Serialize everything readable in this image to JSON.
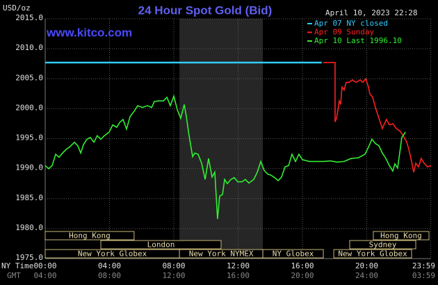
{
  "chart_data": {
    "type": "line",
    "title": "24 Hour Spot Gold (Bid)",
    "site": "www.kitco.com",
    "timestamp": "April 10, 2023 22:28",
    "y_label": "USD/oz",
    "x_row_labels": [
      "NY Time",
      "GMT"
    ],
    "xlim": [
      0,
      24
    ],
    "ylim": [
      1975,
      2015
    ],
    "xticks": [
      {
        "value": 0,
        "label": "00:00"
      },
      {
        "value": 4,
        "label": "04:00"
      },
      {
        "value": 8,
        "label": "08:00"
      },
      {
        "value": 12,
        "label": "12:00"
      },
      {
        "value": 16,
        "label": "16:00"
      },
      {
        "value": 20,
        "label": "20:00"
      },
      {
        "value": 23.98,
        "label": "23:59"
      }
    ],
    "gmt_labels": [
      "04:00",
      "08:00",
      "12:00",
      "16:00",
      "20:00",
      "24:00",
      "03:59"
    ],
    "yticks": [
      {
        "value": 1975,
        "label": "1975.0"
      },
      {
        "value": 1980,
        "label": "1980.0"
      },
      {
        "value": 1985,
        "label": "1985.0"
      },
      {
        "value": 1990,
        "label": "1990.0"
      },
      {
        "value": 1995,
        "label": "1995.0"
      },
      {
        "value": 2000,
        "label": "2000.0"
      },
      {
        "value": 2005,
        "label": "2005.0"
      },
      {
        "value": 2010,
        "label": "2010.0"
      },
      {
        "value": 2015,
        "label": "2015.0"
      }
    ],
    "grid": true,
    "shaded_range": [
      8.35,
      13.54
    ],
    "sessions": [
      [
        {
          "label": "Hong Kong",
          "start": 0,
          "end": 5.53
        },
        {
          "label": "Hong Kong",
          "start": 20.41,
          "end": 23.87
        }
      ],
      [
        {
          "label": "London",
          "start": 3.46,
          "end": 10.94
        },
        {
          "label": "Sydney",
          "start": 18.94,
          "end": 23.05
        }
      ],
      [
        {
          "label": "New York Globex",
          "start": 0,
          "end": 8.35
        },
        {
          "label": "New York NYMEX",
          "start": 8.35,
          "end": 13.54
        },
        {
          "label": "NY Globex",
          "start": 13.54,
          "end": 17.3
        },
        {
          "label": "New York Globex",
          "start": 17.95,
          "end": 22.79
        }
      ]
    ],
    "series": [
      {
        "name": "Apr 07 NY closed",
        "color": "#33ccff",
        "x": [
          0,
          17.2
        ],
        "values": [
          2007.7,
          2007.7
        ]
      },
      {
        "name": "Apr 09 Sunday",
        "color": "#ff2020",
        "x": [
          17.3,
          18.03,
          18.03,
          18.12,
          18.2,
          18.29,
          18.38,
          18.46,
          18.59,
          18.72,
          18.9,
          19.11,
          19.33,
          19.59,
          19.76,
          19.94,
          20.11,
          20.19,
          20.37,
          20.54,
          20.76,
          20.97,
          21.1,
          21.23,
          21.41,
          21.62,
          21.84,
          22.05,
          22.27,
          22.49,
          22.62,
          22.79,
          22.92,
          23.05,
          23.22,
          23.39,
          23.57,
          23.78,
          24.0
        ],
        "values": [
          2007.7,
          2007.7,
          1997.8,
          1998.4,
          1999.6,
          2001.3,
          2000.7,
          2003.6,
          2003.1,
          2004.4,
          2004.4,
          2004.8,
          2004.4,
          2004.8,
          2004.4,
          2005.0,
          2003.6,
          2002.5,
          2001.9,
          2000.2,
          1998.4,
          1996.7,
          1997.5,
          1998.2,
          1997.3,
          1997.5,
          1996.7,
          1996.3,
          1995.5,
          1994.4,
          1993.2,
          1991.2,
          1989.4,
          1990.9,
          1990.3,
          1991.7,
          1990.9,
          1990.3,
          1990.5
        ]
      },
      {
        "name": "Apr 10 Last 1996.10",
        "color": "#33ee33",
        "x": [
          0,
          0.22,
          0.43,
          0.65,
          0.86,
          1.08,
          1.3,
          1.51,
          1.82,
          2.03,
          2.21,
          2.38,
          2.59,
          2.81,
          3.03,
          3.24,
          3.46,
          3.68,
          3.98,
          4.2,
          4.45,
          4.63,
          4.84,
          5.06,
          5.28,
          5.54,
          5.75,
          6.05,
          6.36,
          6.62,
          6.79,
          7.05,
          7.35,
          7.57,
          7.78,
          8.0,
          8.22,
          8.43,
          8.65,
          8.78,
          8.95,
          9.17,
          9.3,
          9.51,
          9.73,
          9.95,
          10.16,
          10.38,
          10.55,
          10.72,
          10.85,
          11.03,
          11.16,
          11.33,
          11.55,
          11.76,
          11.98,
          12.24,
          12.45,
          12.67,
          12.97,
          13.19,
          13.41,
          13.62,
          13.84,
          14.05,
          14.27,
          14.49,
          14.7,
          14.92,
          15.14,
          15.35,
          15.57,
          15.78,
          16.0,
          16.43,
          16.86,
          17.3,
          17.73,
          18.16,
          18.59,
          19.03,
          19.46,
          19.89,
          20.11,
          20.32,
          20.54,
          20.76,
          20.97,
          21.19,
          21.41,
          21.62,
          21.75,
          21.92,
          22.05,
          22.18,
          22.41
        ],
        "values": [
          1990.5,
          1990.0,
          1990.5,
          1992.4,
          1991.9,
          1992.6,
          1993.2,
          1993.6,
          1994.4,
          1993.8,
          1992.6,
          1994.0,
          1994.9,
          1995.2,
          1994.4,
          1995.5,
          1994.9,
          1995.5,
          1996.1,
          1997.3,
          1996.9,
          1997.7,
          1998.2,
          1996.6,
          1998.7,
          1999.6,
          2000.5,
          2000.2,
          2000.5,
          2000.2,
          2001.2,
          2001.3,
          2001.3,
          2001.9,
          2000.5,
          2002.1,
          1999.8,
          1998.4,
          2000.7,
          1998.7,
          1995.5,
          1992.0,
          1992.6,
          1992.4,
          1990.9,
          1988.2,
          1991.7,
          1988.6,
          1989.4,
          1981.6,
          1985.4,
          1985.7,
          1988.2,
          1987.5,
          1988.2,
          1988.5,
          1987.8,
          1987.8,
          1988.2,
          1987.6,
          1988.2,
          1989.4,
          1991.2,
          1989.7,
          1989.1,
          1988.9,
          1988.5,
          1988.0,
          1988.6,
          1990.3,
          1990.5,
          1992.4,
          1991.2,
          1992.4,
          1991.5,
          1991.2,
          1991.2,
          1991.2,
          1991.3,
          1991.1,
          1991.2,
          1991.7,
          1991.8,
          1992.4,
          1993.6,
          1994.9,
          1994.2,
          1993.8,
          1992.6,
          1991.7,
          1990.5,
          1989.6,
          1990.8,
          1990.1,
          1992.6,
          1995.2,
          1996.1
        ]
      }
    ]
  }
}
